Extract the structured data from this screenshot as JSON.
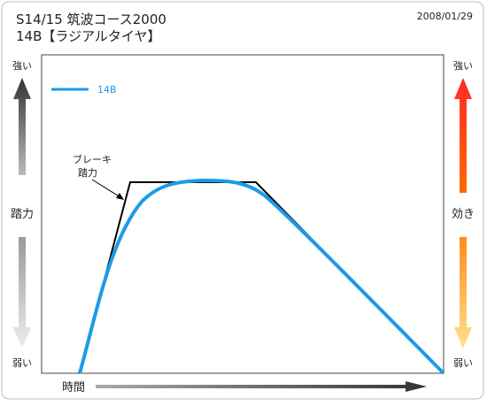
{
  "header": {
    "title_line1": "S14/15 筑波コース2000",
    "title_line2": "14B【ラジアルタイヤ】",
    "date": "2008/01/29"
  },
  "left_axis": {
    "top": "強い",
    "label": "踏力",
    "bottom": "弱い"
  },
  "right_axis": {
    "top": "強い",
    "label": "効き",
    "bottom": "弱い"
  },
  "legend": {
    "label": "14B"
  },
  "annotation": {
    "lines": [
      "ブレーキ",
      "踏力"
    ]
  },
  "x_axis": {
    "label": "時間"
  }
}
